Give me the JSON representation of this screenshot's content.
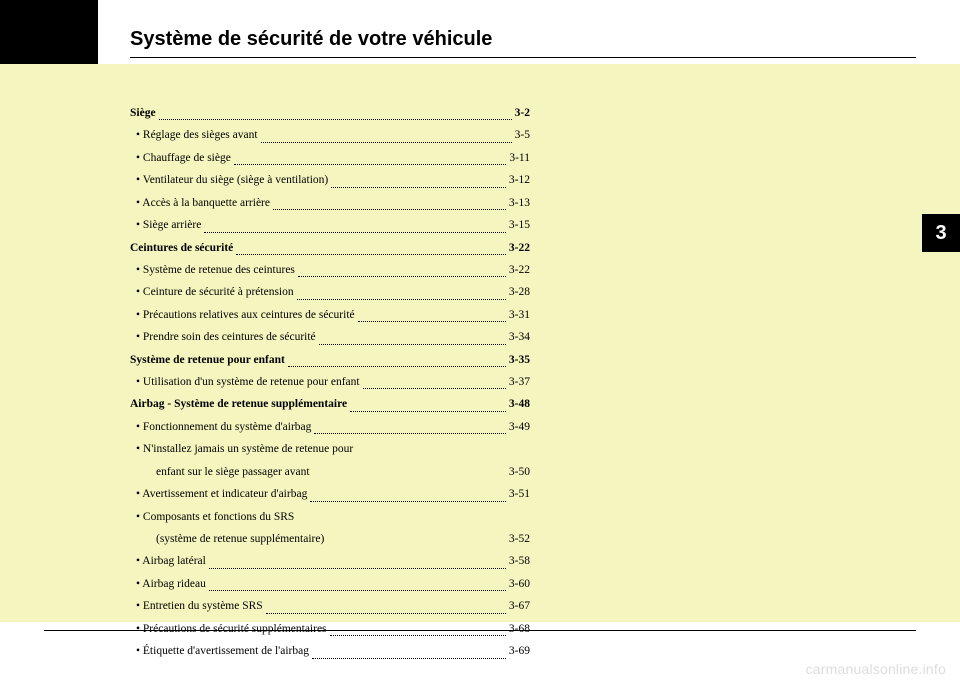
{
  "colors": {
    "page_bg": "#ffffff",
    "content_bg": "#f5f5c0",
    "tab_bg": "#000000",
    "tab_text": "#ffffff",
    "text": "#000000",
    "rule": "#000000",
    "watermark": "#dddddd"
  },
  "title": "Système de sécurité de votre véhicule",
  "section_tab": "3",
  "watermark": "carmanualsonline.info",
  "toc": [
    {
      "type": "main",
      "label": "Siège",
      "page": "3-2"
    },
    {
      "type": "sub",
      "label": "Réglage des sièges avant",
      "page": "3-5"
    },
    {
      "type": "sub",
      "label": "Chauffage de siège",
      "page": "3-11"
    },
    {
      "type": "sub",
      "label": "Ventilateur du siège (siège à ventilation)",
      "page": "3-12"
    },
    {
      "type": "sub",
      "label": "Accès à la banquette arrière",
      "page": "3-13"
    },
    {
      "type": "sub",
      "label": "Siège arrière",
      "page": "3-15"
    },
    {
      "type": "main",
      "label": "Ceintures de sécurité",
      "page": "3-22"
    },
    {
      "type": "sub",
      "label": "Système de retenue des ceintures",
      "page": "3-22"
    },
    {
      "type": "sub",
      "label": "Ceinture de sécurité à prétension",
      "page": "3-28"
    },
    {
      "type": "sub",
      "label": "Précautions relatives aux ceintures de sécurité",
      "page": "3-31"
    },
    {
      "type": "sub",
      "label": "Prendre soin des ceintures de sécurité",
      "page": "3-34"
    },
    {
      "type": "main",
      "label": "Système de retenue pour enfant",
      "page": "3-35"
    },
    {
      "type": "sub",
      "label": "Utilisation d'un système de retenue pour enfant",
      "page": "3-37"
    },
    {
      "type": "main",
      "label": "Airbag - Système de retenue supplémentaire",
      "page": "3-48"
    },
    {
      "type": "sub",
      "label": "Fonctionnement du système d'airbag",
      "page": "3-49"
    },
    {
      "type": "wrap",
      "label1": "N'installez jamais un système de retenue pour",
      "label2": "enfant sur le siège passager avant",
      "page": "3-50"
    },
    {
      "type": "sub",
      "label": "Avertissement et indicateur d'airbag",
      "page": "3-51"
    },
    {
      "type": "wrap",
      "label1": "Composants et fonctions du SRS",
      "label2": "(système de retenue supplémentaire)",
      "page": "3-52"
    },
    {
      "type": "sub",
      "label": "Airbag latéral",
      "page": "3-58"
    },
    {
      "type": "sub",
      "label": "Airbag rideau",
      "page": "3-60"
    },
    {
      "type": "sub",
      "label": "Entretien du système SRS",
      "page": "3-67"
    },
    {
      "type": "sub",
      "label": "Précautions de sécurité supplémentaires",
      "page": "3-68"
    },
    {
      "type": "sub",
      "label": "Étiquette d'avertissement de l'airbag",
      "page": "3-69"
    }
  ]
}
